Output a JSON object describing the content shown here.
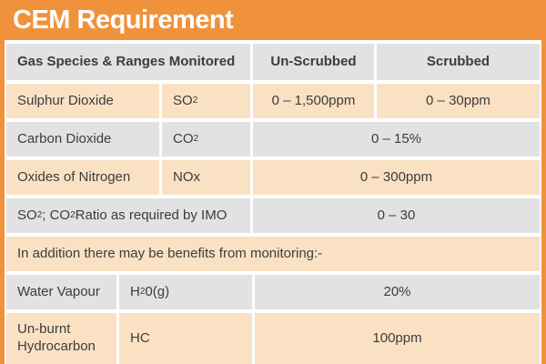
{
  "title": "CEM Requirement",
  "colors": {
    "orange": "#F0923C",
    "row_peach": "#FAE1C3",
    "row_gray": "#E2E2E2",
    "text": "#3C3C3C",
    "title_text": "#FFFFFF"
  },
  "table": {
    "header": {
      "col_species": "Gas Species & Ranges Monitored",
      "col_unscrubbed": "Un-Scrubbed",
      "col_scrubbed": "Scrubbed"
    },
    "rows": {
      "so2": {
        "name": "Sulphur Dioxide",
        "formula_base": "SO",
        "formula_sub": "2",
        "unscrubbed": "0 – 1,500ppm",
        "scrubbed": "0 – 30ppm"
      },
      "co2": {
        "name": "Carbon Dioxide",
        "formula_base": "CO",
        "formula_sub": "2",
        "range": "0 – 15%"
      },
      "nox": {
        "name": "Oxides of Nitrogen",
        "formula": "NOx",
        "range": "0 – 300ppm"
      },
      "ratio": {
        "part1": "SO",
        "sub1": "2",
        "part2": "; CO",
        "sub2": "2",
        "part3": " Ratio as required by IMO",
        "range": "0 – 30"
      },
      "note": {
        "text": "In addition there may be benefits from monitoring:-"
      },
      "water": {
        "name": "Water Vapour",
        "formula_base": "H",
        "formula_sub": "2",
        "formula_rest": "0(g)",
        "range": "20%"
      },
      "hc": {
        "name": "Un-burnt Hydrocarbon",
        "formula": "HC",
        "range": "100ppm"
      }
    }
  }
}
